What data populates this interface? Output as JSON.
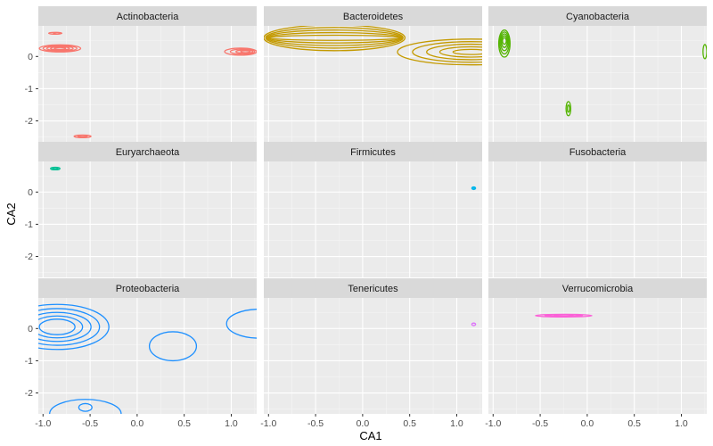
{
  "chart_data": {
    "type": "contour",
    "title": "",
    "xlabel": "CA1",
    "ylabel": "CA2",
    "xlim": [
      -1.05,
      1.27
    ],
    "ylim": [
      -2.65,
      0.95
    ],
    "xticks": [
      -1.0,
      -0.5,
      0.0,
      0.5,
      1.0
    ],
    "xtick_labels": [
      "-1.0",
      "-0.5",
      "0.0",
      "0.5",
      "1.0"
    ],
    "yticks": [
      0,
      -1,
      -2
    ],
    "ytick_labels": [
      "0",
      "-1",
      "-2"
    ],
    "grid": true,
    "facets": [
      {
        "name": "Actinobacteria",
        "color": "#F8766D",
        "contours": [
          {
            "cx": -0.87,
            "cy": 0.72,
            "rx": 0.07,
            "ry": 0.03
          },
          {
            "cx": -0.85,
            "cy": 0.72,
            "rx": 0.04,
            "ry": 0.015
          },
          {
            "cx": -0.82,
            "cy": 0.25,
            "rx": 0.22,
            "ry": 0.11
          },
          {
            "cx": -0.82,
            "cy": 0.25,
            "rx": 0.18,
            "ry": 0.09
          },
          {
            "cx": -0.82,
            "cy": 0.25,
            "rx": 0.14,
            "ry": 0.07
          },
          {
            "cx": -0.82,
            "cy": 0.25,
            "rx": 0.1,
            "ry": 0.05
          },
          {
            "cx": -0.82,
            "cy": 0.25,
            "rx": 0.06,
            "ry": 0.03
          },
          {
            "cx": 1.1,
            "cy": 0.15,
            "rx": 0.17,
            "ry": 0.11
          },
          {
            "cx": 1.12,
            "cy": 0.15,
            "rx": 0.13,
            "ry": 0.08
          },
          {
            "cx": 1.14,
            "cy": 0.15,
            "rx": 0.09,
            "ry": 0.05
          },
          {
            "cx": 1.15,
            "cy": 0.15,
            "rx": 0.05,
            "ry": 0.03
          },
          {
            "cx": -0.58,
            "cy": -2.48,
            "rx": 0.09,
            "ry": 0.04
          },
          {
            "cx": -0.58,
            "cy": -2.48,
            "rx": 0.05,
            "ry": 0.02
          }
        ]
      },
      {
        "name": "Bacteroidetes",
        "color": "#C49A00",
        "contours": [
          {
            "cx": -0.3,
            "cy": 0.58,
            "rx": 0.75,
            "ry": 0.4
          },
          {
            "cx": -0.3,
            "cy": 0.58,
            "rx": 0.73,
            "ry": 0.32
          },
          {
            "cx": -0.3,
            "cy": 0.58,
            "rx": 0.72,
            "ry": 0.24
          },
          {
            "cx": -0.3,
            "cy": 0.58,
            "rx": 0.71,
            "ry": 0.16
          },
          {
            "cx": -0.3,
            "cy": 0.58,
            "rx": 0.7,
            "ry": 0.08
          },
          {
            "cx": 1.15,
            "cy": 0.14,
            "rx": 0.78,
            "ry": 0.4
          },
          {
            "cx": 1.15,
            "cy": 0.14,
            "rx": 0.62,
            "ry": 0.32
          },
          {
            "cx": 1.15,
            "cy": 0.14,
            "rx": 0.47,
            "ry": 0.24
          },
          {
            "cx": 1.15,
            "cy": 0.14,
            "rx": 0.33,
            "ry": 0.16
          },
          {
            "cx": 1.15,
            "cy": 0.14,
            "rx": 0.19,
            "ry": 0.08
          }
        ]
      },
      {
        "name": "Cyanobacteria",
        "color": "#53B400",
        "contours": [
          {
            "cx": -0.88,
            "cy": 0.4,
            "rx": 0.06,
            "ry": 0.42
          },
          {
            "cx": -0.88,
            "cy": 0.42,
            "rx": 0.05,
            "ry": 0.34
          },
          {
            "cx": -0.88,
            "cy": 0.44,
            "rx": 0.04,
            "ry": 0.26
          },
          {
            "cx": -0.88,
            "cy": 0.46,
            "rx": 0.03,
            "ry": 0.18
          },
          {
            "cx": -0.88,
            "cy": 0.48,
            "rx": 0.02,
            "ry": 0.1
          },
          {
            "cx": 1.25,
            "cy": 0.15,
            "rx": 0.02,
            "ry": 0.22
          },
          {
            "cx": -0.2,
            "cy": -1.62,
            "rx": 0.025,
            "ry": 0.22
          },
          {
            "cx": -0.2,
            "cy": -1.62,
            "rx": 0.012,
            "ry": 0.11
          }
        ]
      },
      {
        "name": "Euryarchaeota",
        "color": "#00C094",
        "contours": [
          {
            "cx": -0.87,
            "cy": 0.73,
            "rx": 0.05,
            "ry": 0.04
          },
          {
            "cx": -0.87,
            "cy": 0.73,
            "rx": 0.03,
            "ry": 0.02
          }
        ]
      },
      {
        "name": "Firmicutes",
        "color": "#00B6EB",
        "contours": [
          {
            "cx": 1.18,
            "cy": 0.12,
            "rx": 0.02,
            "ry": 0.04
          },
          {
            "cx": 1.18,
            "cy": 0.12,
            "rx": 0.01,
            "ry": 0.02
          }
        ]
      },
      {
        "name": "Fusobacteria",
        "color": "#A58AFF",
        "contours": []
      },
      {
        "name": "Proteobacteria",
        "color": "#1E90FF",
        "contours": [
          {
            "cx": -0.85,
            "cy": 0.05,
            "rx": 0.55,
            "ry": 0.7
          },
          {
            "cx": -0.85,
            "cy": 0.05,
            "rx": 0.45,
            "ry": 0.57
          },
          {
            "cx": -0.85,
            "cy": 0.05,
            "rx": 0.36,
            "ry": 0.45
          },
          {
            "cx": -0.85,
            "cy": 0.05,
            "rx": 0.27,
            "ry": 0.34
          },
          {
            "cx": -0.85,
            "cy": 0.05,
            "rx": 0.19,
            "ry": 0.24
          },
          {
            "cx": 0.38,
            "cy": -0.55,
            "rx": 0.25,
            "ry": 0.45
          },
          {
            "cx": 1.3,
            "cy": 0.15,
            "rx": 0.35,
            "ry": 0.45
          },
          {
            "cx": -0.55,
            "cy": -2.65,
            "rx": 0.38,
            "ry": 0.45
          },
          {
            "cx": -0.55,
            "cy": -2.45,
            "rx": 0.07,
            "ry": 0.12
          }
        ]
      },
      {
        "name": "Tenericutes",
        "color": "#DC71FA",
        "contours": [
          {
            "cx": 1.18,
            "cy": 0.13,
            "rx": 0.02,
            "ry": 0.04
          }
        ]
      },
      {
        "name": "Verrucomicrobia",
        "color": "#FB61D7",
        "contours": [
          {
            "cx": -0.25,
            "cy": 0.4,
            "rx": 0.3,
            "ry": 0.04
          },
          {
            "cx": -0.25,
            "cy": 0.4,
            "rx": 0.2,
            "ry": 0.025
          },
          {
            "cx": -0.25,
            "cy": 0.4,
            "rx": 0.1,
            "ry": 0.012
          }
        ]
      }
    ]
  }
}
